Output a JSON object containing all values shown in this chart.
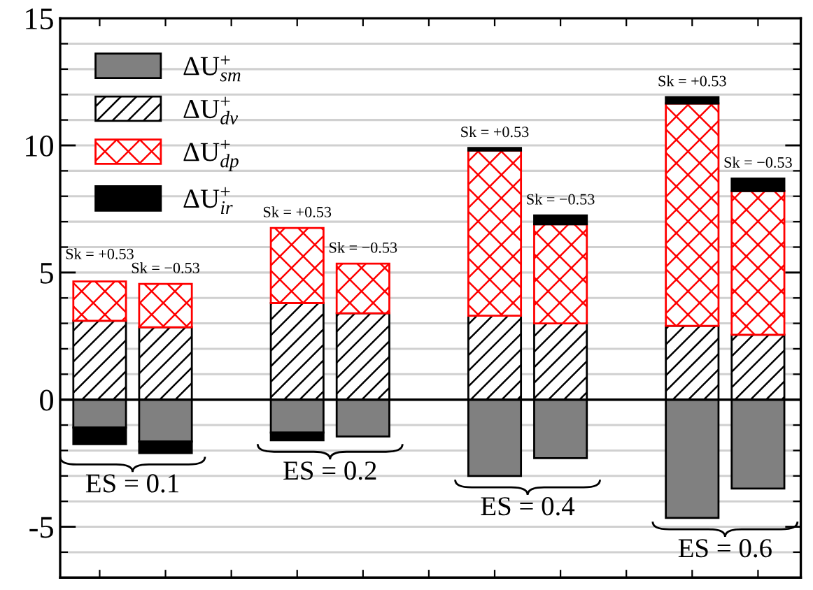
{
  "chart_data": {
    "type": "bar",
    "stacked": true,
    "categories": [
      "Sk = +0.53",
      "Sk = −0.53",
      null,
      "Sk = +0.53",
      "Sk = −0.53",
      null,
      "Sk = +0.53",
      "Sk = −0.53",
      null,
      "Sk = +0.53",
      "Sk = −0.53"
    ],
    "series": [
      {
        "name": "ΔU$^{+}$$_{sm}$",
        "color": "#808080",
        "values": [
          -1.1,
          -1.65,
          null,
          -1.3,
          -1.45,
          null,
          -3.0,
          -2.3,
          null,
          -4.65,
          -3.5
        ]
      },
      {
        "name": "ΔU$^{+}$$_{dv}$",
        "color": "#000000",
        "values": [
          3.1,
          2.85,
          null,
          3.8,
          3.4,
          null,
          3.3,
          3.0,
          null,
          2.9,
          2.55
        ]
      },
      {
        "name": "ΔU$^{+}$$_{dp}$",
        "color": "#ff0000",
        "values": [
          1.55,
          1.7,
          null,
          2.95,
          1.95,
          null,
          6.5,
          3.9,
          null,
          8.75,
          5.65
        ]
      },
      {
        "name": "ΔU$^{+}$$_{ir}$",
        "color": "#000000",
        "values": [
          -0.65,
          -0.45,
          null,
          -0.3,
          null,
          null,
          0.1,
          0.35,
          null,
          0.25,
          0.5
        ]
      }
    ],
    "ylim": [
      -7,
      15
    ],
    "yticks": [
      {
        "value": -6,
        "label": null
      },
      -5,
      {
        "value": -4,
        "label": null
      },
      {
        "value": -3,
        "label": null
      },
      {
        "value": -2,
        "label": null
      },
      {
        "value": -1,
        "label": null
      },
      0,
      {
        "value": 1,
        "label": null
      },
      {
        "value": 2,
        "label": null
      },
      {
        "value": 3,
        "label": null
      },
      {
        "value": 4,
        "label": null
      },
      5,
      {
        "value": 6,
        "label": null
      },
      {
        "value": 7,
        "label": null
      },
      {
        "value": 8,
        "label": null
      },
      {
        "value": 9,
        "label": null
      },
      10,
      {
        "value": 11,
        "label": null
      },
      {
        "value": 12,
        "label": null
      },
      {
        "value": 13,
        "label": null
      },
      {
        "value": 14,
        "label": null
      },
      15
    ],
    "grid": "y",
    "legend": "top left",
    "ref_lines": [
      {
        "axis": "y",
        "value": 0,
        "color": "#000000"
      }
    ],
    "annotations": [
      "ES = 0.1",
      "ES = 0.2",
      "ES = 0.4",
      "ES = 0.6"
    ]
  }
}
